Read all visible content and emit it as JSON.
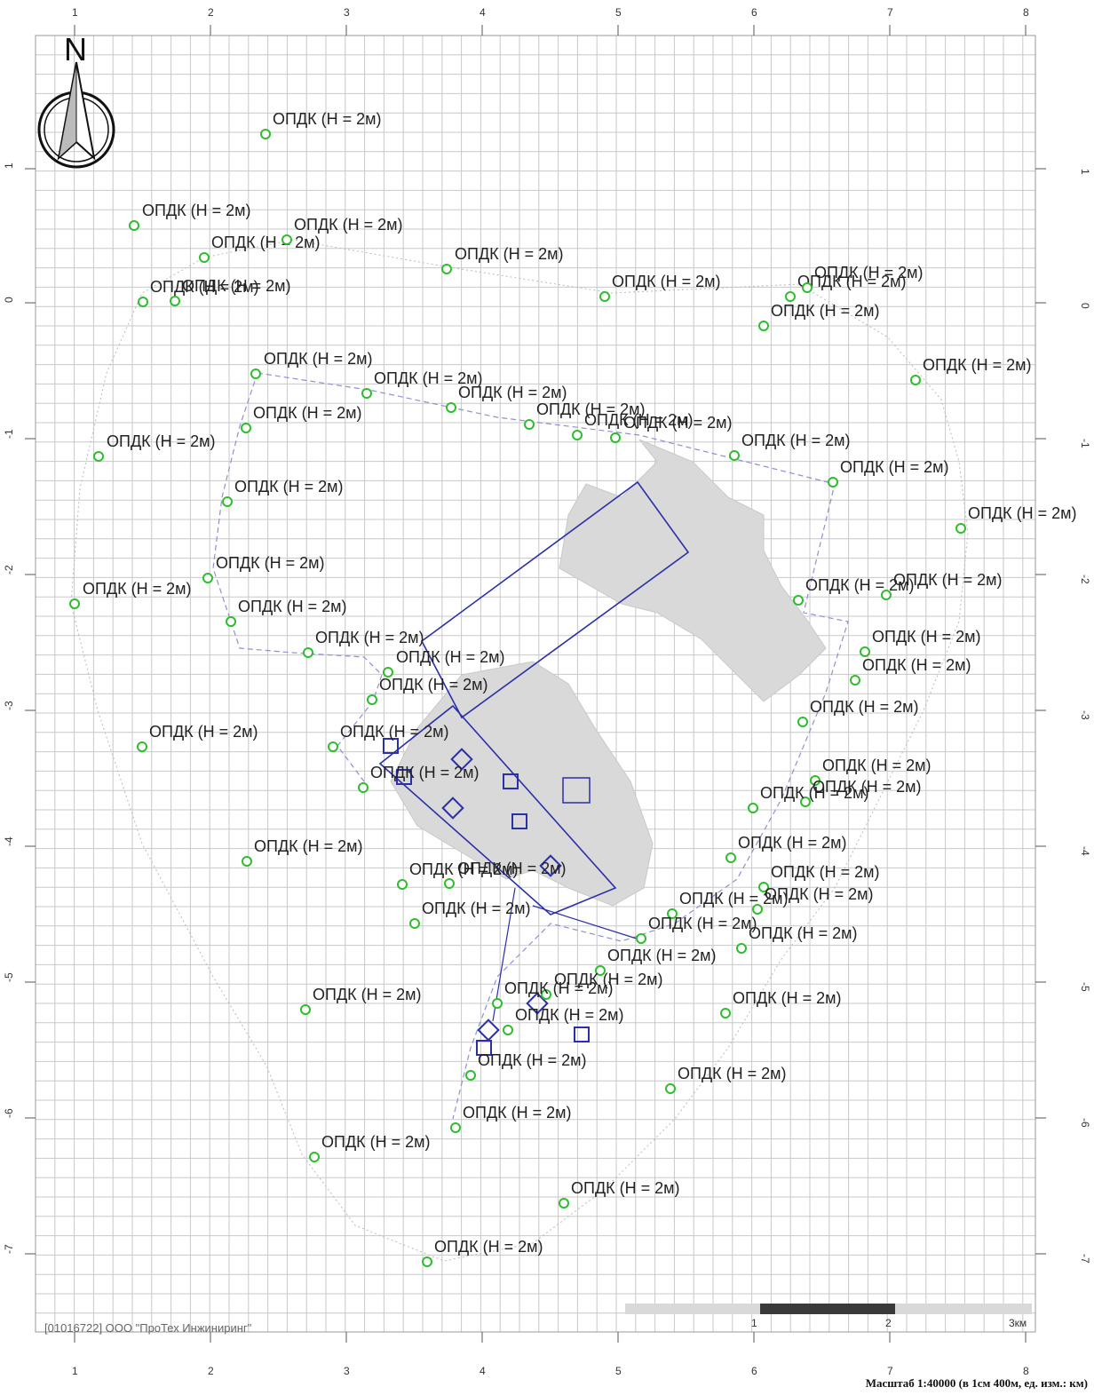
{
  "north_label": "N",
  "point_label": "ОПДК (Н = 2м)",
  "points_count": 70,
  "x_ticks": [
    "1",
    "2",
    "3",
    "4",
    "5",
    "6",
    "7",
    "8"
  ],
  "y_ticks": [
    "1",
    "0",
    "-1",
    "-2",
    "-3",
    "-4",
    "-5",
    "-6",
    "-7"
  ],
  "scale_bar": {
    "labels": [
      "1",
      "2",
      "3км"
    ]
  },
  "footer": {
    "company": "[01016722] ООО \"ПроТех Инжиниринг\"",
    "scale": "Масштаб 1:40000 (в 1см 400м, ед. изм.: км)"
  },
  "colors": {
    "grid": "#c8c8c8",
    "point": "#2ebd2e",
    "boundary": "#2b2fa8",
    "dash": "#8e90d4",
    "lake": "#d9d9d9",
    "label": "#222222"
  }
}
